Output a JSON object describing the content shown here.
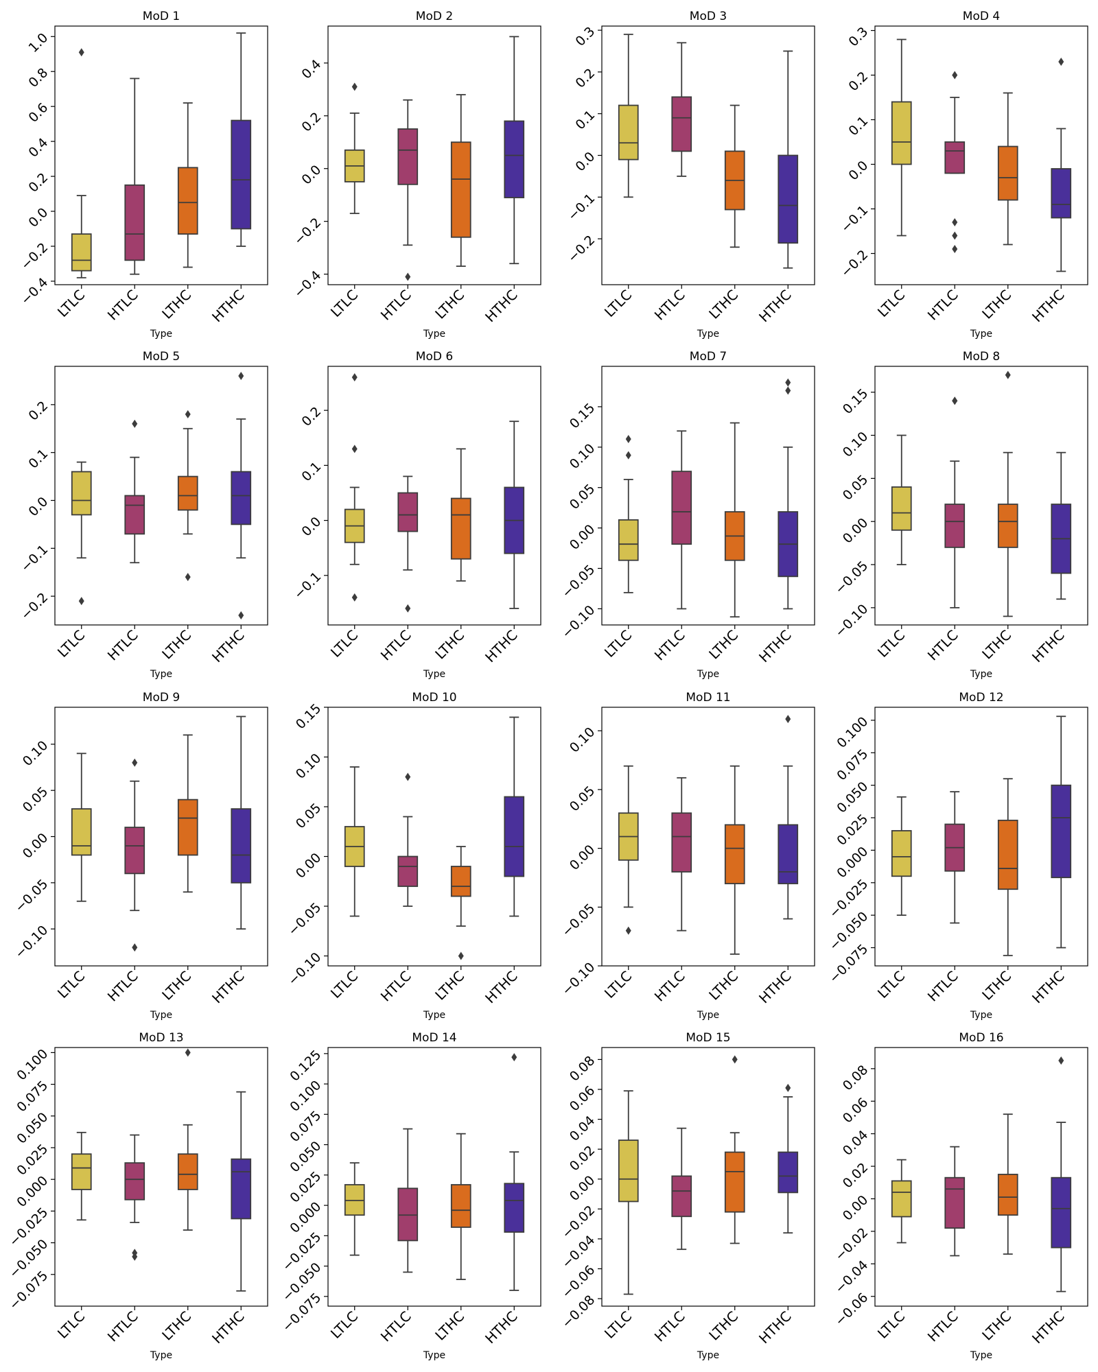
{
  "chart_data": [
    {
      "type": "box",
      "title": "MoD 1",
      "xlabel": "Type",
      "ylim": [
        -0.42,
        1.06
      ],
      "yticks": [
        "1.0",
        "0.8",
        "0.6",
        "0.4",
        "0.2",
        "0.0",
        "−0.2",
        "−0.4"
      ],
      "ytickvals": [
        1.0,
        0.8,
        0.6,
        0.4,
        0.2,
        0.0,
        -0.2,
        -0.4
      ],
      "categories": [
        "LTLC",
        "HTLC",
        "LTHC",
        "HTHC"
      ],
      "boxes": [
        {
          "min": -0.38,
          "q1": -0.34,
          "median": -0.28,
          "q3": -0.13,
          "max": 0.09,
          "outliers": [
            0.91
          ]
        },
        {
          "min": -0.36,
          "q1": -0.28,
          "median": -0.13,
          "q3": 0.15,
          "max": 0.76,
          "outliers": []
        },
        {
          "min": -0.32,
          "q1": -0.13,
          "median": 0.05,
          "q3": 0.25,
          "max": 0.62,
          "outliers": []
        },
        {
          "min": -0.2,
          "q1": -0.1,
          "median": 0.18,
          "q3": 0.52,
          "max": 1.02,
          "outliers": []
        }
      ]
    },
    {
      "type": "box",
      "title": "MoD 2",
      "xlabel": "Type",
      "ylim": [
        -0.44,
        0.54
      ],
      "yticks": [
        "0.4",
        "0.2",
        "0.0",
        "−0.2",
        "−0.4"
      ],
      "ytickvals": [
        0.4,
        0.2,
        0.0,
        -0.2,
        -0.4
      ],
      "categories": [
        "LTLC",
        "HTLC",
        "LTHC",
        "HTHC"
      ],
      "boxes": [
        {
          "min": -0.17,
          "q1": -0.05,
          "median": 0.01,
          "q3": 0.07,
          "max": 0.21,
          "outliers": [
            0.31
          ]
        },
        {
          "min": -0.29,
          "q1": -0.06,
          "median": 0.07,
          "q3": 0.15,
          "max": 0.26,
          "outliers": [
            -0.41
          ]
        },
        {
          "min": -0.37,
          "q1": -0.26,
          "median": -0.04,
          "q3": 0.1,
          "max": 0.28,
          "outliers": []
        },
        {
          "min": -0.36,
          "q1": -0.11,
          "median": 0.05,
          "q3": 0.18,
          "max": 0.5,
          "outliers": []
        }
      ]
    },
    {
      "type": "box",
      "title": "MoD 3",
      "xlabel": "Type",
      "ylim": [
        -0.31,
        0.31
      ],
      "yticks": [
        "0.3",
        "0.2",
        "0.1",
        "0.0",
        "−0.1",
        "−0.2"
      ],
      "ytickvals": [
        0.3,
        0.2,
        0.1,
        0.0,
        -0.1,
        -0.2
      ],
      "categories": [
        "LTLC",
        "HTLC",
        "LTHC",
        "HTHC"
      ],
      "boxes": [
        {
          "min": -0.1,
          "q1": -0.01,
          "median": 0.03,
          "q3": 0.12,
          "max": 0.29,
          "outliers": []
        },
        {
          "min": -0.05,
          "q1": 0.01,
          "median": 0.09,
          "q3": 0.14,
          "max": 0.27,
          "outliers": []
        },
        {
          "min": -0.22,
          "q1": -0.13,
          "median": -0.06,
          "q3": 0.01,
          "max": 0.12,
          "outliers": []
        },
        {
          "min": -0.27,
          "q1": -0.21,
          "median": -0.12,
          "q3": 0.0,
          "max": 0.25,
          "outliers": []
        }
      ]
    },
    {
      "type": "box",
      "title": "MoD 4",
      "xlabel": "Type",
      "ylim": [
        -0.27,
        0.31
      ],
      "yticks": [
        "0.3",
        "0.2",
        "0.1",
        "0.0",
        "−0.1",
        "−0.2"
      ],
      "ytickvals": [
        0.3,
        0.2,
        0.1,
        0.0,
        -0.1,
        -0.2
      ],
      "categories": [
        "LTLC",
        "HTLC",
        "LTHC",
        "HTHC"
      ],
      "boxes": [
        {
          "min": -0.16,
          "q1": 0.0,
          "median": 0.05,
          "q3": 0.14,
          "max": 0.28,
          "outliers": []
        },
        {
          "min": -0.02,
          "q1": -0.02,
          "median": 0.03,
          "q3": 0.05,
          "max": 0.15,
          "outliers": [
            0.2,
            -0.13,
            -0.16,
            -0.19
          ]
        },
        {
          "min": -0.18,
          "q1": -0.08,
          "median": -0.03,
          "q3": 0.04,
          "max": 0.16,
          "outliers": []
        },
        {
          "min": -0.24,
          "q1": -0.12,
          "median": -0.09,
          "q3": -0.01,
          "max": 0.08,
          "outliers": [
            0.23
          ]
        }
      ]
    },
    {
      "type": "box",
      "title": "MoD 5",
      "xlabel": "Type",
      "ylim": [
        -0.26,
        0.28
      ],
      "yticks": [
        "0.2",
        "0.1",
        "0.0",
        "−0.1",
        "−0.2"
      ],
      "ytickvals": [
        0.2,
        0.1,
        0.0,
        -0.1,
        -0.2
      ],
      "categories": [
        "LTLC",
        "HTLC",
        "LTHC",
        "HTHC"
      ],
      "boxes": [
        {
          "min": -0.12,
          "q1": -0.03,
          "median": 0.0,
          "q3": 0.06,
          "max": 0.08,
          "outliers": [
            -0.21
          ]
        },
        {
          "min": -0.13,
          "q1": -0.07,
          "median": -0.01,
          "q3": 0.01,
          "max": 0.09,
          "outliers": [
            0.16
          ]
        },
        {
          "min": -0.07,
          "q1": -0.02,
          "median": 0.01,
          "q3": 0.05,
          "max": 0.15,
          "outliers": [
            0.18,
            -0.16
          ]
        },
        {
          "min": -0.12,
          "q1": -0.05,
          "median": 0.01,
          "q3": 0.06,
          "max": 0.17,
          "outliers": [
            0.26,
            -0.24
          ]
        }
      ]
    },
    {
      "type": "box",
      "title": "MoD 6",
      "xlabel": "Type",
      "ylim": [
        -0.19,
        0.28
      ],
      "yticks": [
        "0.2",
        "0.1",
        "0.0",
        "−0.1"
      ],
      "ytickvals": [
        0.2,
        0.1,
        0.0,
        -0.1
      ],
      "categories": [
        "LTLC",
        "HTLC",
        "LTHC",
        "HTHC"
      ],
      "boxes": [
        {
          "min": -0.08,
          "q1": -0.04,
          "median": -0.01,
          "q3": 0.02,
          "max": 0.06,
          "outliers": [
            0.26,
            0.13,
            -0.14
          ]
        },
        {
          "min": -0.09,
          "q1": -0.02,
          "median": 0.01,
          "q3": 0.05,
          "max": 0.08,
          "outliers": [
            -0.16
          ]
        },
        {
          "min": -0.11,
          "q1": -0.07,
          "median": 0.01,
          "q3": 0.04,
          "max": 0.13,
          "outliers": []
        },
        {
          "min": -0.16,
          "q1": -0.06,
          "median": 0.0,
          "q3": 0.06,
          "max": 0.18,
          "outliers": []
        }
      ]
    },
    {
      "type": "box",
      "title": "MoD 7",
      "xlabel": "Type",
      "ylim": [
        -0.12,
        0.2
      ],
      "yticks": [
        "0.15",
        "0.10",
        "0.05",
        "0.00",
        "−0.05",
        "−0.10"
      ],
      "ytickvals": [
        0.15,
        0.1,
        0.05,
        0.0,
        -0.05,
        -0.1
      ],
      "categories": [
        "LTLC",
        "HTLC",
        "LTHC",
        "HTHC"
      ],
      "boxes": [
        {
          "min": -0.08,
          "q1": -0.04,
          "median": -0.02,
          "q3": 0.01,
          "max": 0.06,
          "outliers": [
            0.11,
            0.09
          ]
        },
        {
          "min": -0.1,
          "q1": -0.02,
          "median": 0.02,
          "q3": 0.07,
          "max": 0.12,
          "outliers": []
        },
        {
          "min": -0.11,
          "q1": -0.04,
          "median": -0.01,
          "q3": 0.02,
          "max": 0.13,
          "outliers": []
        },
        {
          "min": -0.1,
          "q1": -0.06,
          "median": -0.02,
          "q3": 0.02,
          "max": 0.1,
          "outliers": [
            0.18,
            0.17
          ]
        }
      ]
    },
    {
      "type": "box",
      "title": "MoD 8",
      "xlabel": "Type",
      "ylim": [
        -0.12,
        0.18
      ],
      "yticks": [
        "0.15",
        "0.10",
        "0.05",
        "0.00",
        "−0.05",
        "−0.10"
      ],
      "ytickvals": [
        0.15,
        0.1,
        0.05,
        0.0,
        -0.05,
        -0.1
      ],
      "categories": [
        "LTLC",
        "HTLC",
        "LTHC",
        "HTHC"
      ],
      "boxes": [
        {
          "min": -0.05,
          "q1": -0.01,
          "median": 0.01,
          "q3": 0.04,
          "max": 0.1,
          "outliers": []
        },
        {
          "min": -0.1,
          "q1": -0.03,
          "median": 0.0,
          "q3": 0.02,
          "max": 0.07,
          "outliers": [
            0.14,
            0.14
          ]
        },
        {
          "min": -0.11,
          "q1": -0.03,
          "median": 0.0,
          "q3": 0.02,
          "max": 0.08,
          "outliers": [
            0.17
          ]
        },
        {
          "min": -0.09,
          "q1": -0.06,
          "median": -0.02,
          "q3": 0.02,
          "max": 0.08,
          "outliers": []
        }
      ]
    },
    {
      "type": "box",
      "title": "MoD 9",
      "xlabel": "Type",
      "ylim": [
        -0.14,
        0.14
      ],
      "yticks": [
        "0.10",
        "0.05",
        "0.00",
        "−0.05",
        "−0.10"
      ],
      "ytickvals": [
        0.1,
        0.05,
        0.0,
        -0.05,
        -0.1
      ],
      "categories": [
        "LTLC",
        "HTLC",
        "LTHC",
        "HTHC"
      ],
      "boxes": [
        {
          "min": -0.07,
          "q1": -0.02,
          "median": -0.01,
          "q3": 0.03,
          "max": 0.09,
          "outliers": []
        },
        {
          "min": -0.08,
          "q1": -0.04,
          "median": -0.01,
          "q3": 0.01,
          "max": 0.06,
          "outliers": [
            0.08,
            -0.12
          ]
        },
        {
          "min": -0.06,
          "q1": -0.02,
          "median": 0.02,
          "q3": 0.04,
          "max": 0.11,
          "outliers": []
        },
        {
          "min": -0.1,
          "q1": -0.05,
          "median": -0.02,
          "q3": 0.03,
          "max": 0.13,
          "outliers": []
        }
      ]
    },
    {
      "type": "box",
      "title": "MoD 10",
      "xlabel": "Type",
      "ylim": [
        -0.11,
        0.15
      ],
      "yticks": [
        "0.15",
        "0.10",
        "0.05",
        "0.00",
        "−0.05",
        "−0.10"
      ],
      "ytickvals": [
        0.15,
        0.1,
        0.05,
        0.0,
        -0.05,
        -0.1
      ],
      "categories": [
        "LTLC",
        "HTLC",
        "LTHC",
        "HTHC"
      ],
      "boxes": [
        {
          "min": -0.06,
          "q1": -0.01,
          "median": 0.01,
          "q3": 0.03,
          "max": 0.09,
          "outliers": []
        },
        {
          "min": -0.05,
          "q1": -0.03,
          "median": -0.01,
          "q3": 0.0,
          "max": 0.04,
          "outliers": [
            0.08
          ]
        },
        {
          "min": -0.07,
          "q1": -0.04,
          "median": -0.03,
          "q3": -0.01,
          "max": 0.01,
          "outliers": [
            -0.1
          ]
        },
        {
          "min": -0.06,
          "q1": -0.02,
          "median": 0.01,
          "q3": 0.06,
          "max": 0.14,
          "outliers": []
        }
      ]
    },
    {
      "type": "box",
      "title": "MoD 11",
      "xlabel": "Type",
      "ylim": [
        -0.1,
        0.12
      ],
      "yticks": [
        "0.10",
        "0.05",
        "0.00",
        "−0.05",
        "−0.10"
      ],
      "ytickvals": [
        0.1,
        0.05,
        0.0,
        -0.05,
        -0.1
      ],
      "categories": [
        "LTLC",
        "HTLC",
        "LTHC",
        "HTHC"
      ],
      "boxes": [
        {
          "min": -0.05,
          "q1": -0.01,
          "median": 0.01,
          "q3": 0.03,
          "max": 0.07,
          "outliers": [
            -0.07
          ]
        },
        {
          "min": -0.07,
          "q1": -0.02,
          "median": 0.01,
          "q3": 0.03,
          "max": 0.06,
          "outliers": []
        },
        {
          "min": -0.09,
          "q1": -0.03,
          "median": 0.0,
          "q3": 0.02,
          "max": 0.07,
          "outliers": []
        },
        {
          "min": -0.06,
          "q1": -0.03,
          "median": -0.02,
          "q3": 0.02,
          "max": 0.07,
          "outliers": [
            0.11
          ]
        }
      ]
    },
    {
      "type": "box",
      "title": "MoD 12",
      "xlabel": "Type",
      "ylim": [
        -0.089,
        0.11
      ],
      "yticks": [
        "0.100",
        "0.075",
        "0.050",
        "0.025",
        "0.000",
        "−0.025",
        "−0.050",
        "−0.075"
      ],
      "ytickvals": [
        0.1,
        0.075,
        0.05,
        0.025,
        0.0,
        -0.025,
        -0.05,
        -0.075
      ],
      "categories": [
        "LTLC",
        "HTLC",
        "LTHC",
        "HTHC"
      ],
      "boxes": [
        {
          "min": -0.05,
          "q1": -0.02,
          "median": -0.005,
          "q3": 0.015,
          "max": 0.041,
          "outliers": []
        },
        {
          "min": -0.056,
          "q1": -0.016,
          "median": 0.002,
          "q3": 0.02,
          "max": 0.045,
          "outliers": []
        },
        {
          "min": -0.081,
          "q1": -0.03,
          "median": -0.014,
          "q3": 0.023,
          "max": 0.055,
          "outliers": []
        },
        {
          "min": -0.075,
          "q1": -0.021,
          "median": 0.025,
          "q3": 0.05,
          "max": 0.103,
          "outliers": []
        }
      ]
    },
    {
      "type": "box",
      "title": "MoD 13",
      "xlabel": "Type",
      "ylim": [
        -0.1,
        0.104
      ],
      "yticks": [
        "0.100",
        "0.075",
        "0.050",
        "0.025",
        "0.000",
        "−0.025",
        "−0.050",
        "−0.075"
      ],
      "ytickvals": [
        0.1,
        0.075,
        0.05,
        0.025,
        0.0,
        -0.025,
        -0.05,
        -0.075
      ],
      "categories": [
        "LTLC",
        "HTLC",
        "LTHC",
        "HTHC"
      ],
      "boxes": [
        {
          "min": -0.032,
          "q1": -0.008,
          "median": 0.009,
          "q3": 0.02,
          "max": 0.037,
          "outliers": []
        },
        {
          "min": -0.034,
          "q1": -0.016,
          "median": 0.0,
          "q3": 0.013,
          "max": 0.035,
          "outliers": [
            -0.058,
            -0.061
          ]
        },
        {
          "min": -0.04,
          "q1": -0.008,
          "median": 0.004,
          "q3": 0.02,
          "max": 0.043,
          "outliers": [
            0.1
          ]
        },
        {
          "min": -0.088,
          "q1": -0.031,
          "median": 0.006,
          "q3": 0.016,
          "max": 0.069,
          "outliers": []
        }
      ]
    },
    {
      "type": "box",
      "title": "MoD 14",
      "xlabel": "Type",
      "ylim": [
        -0.083,
        0.13
      ],
      "yticks": [
        "0.125",
        "0.100",
        "0.075",
        "0.050",
        "0.025",
        "0.000",
        "−0.025",
        "−0.050",
        "−0.075"
      ],
      "ytickvals": [
        0.125,
        0.1,
        0.075,
        0.05,
        0.025,
        0.0,
        -0.025,
        -0.05,
        -0.075
      ],
      "categories": [
        "LTLC",
        "HTLC",
        "LTHC",
        "HTHC"
      ],
      "boxes": [
        {
          "min": -0.041,
          "q1": -0.008,
          "median": 0.004,
          "q3": 0.017,
          "max": 0.035,
          "outliers": []
        },
        {
          "min": -0.055,
          "q1": -0.029,
          "median": -0.008,
          "q3": 0.014,
          "max": 0.063,
          "outliers": []
        },
        {
          "min": -0.061,
          "q1": -0.018,
          "median": -0.004,
          "q3": 0.017,
          "max": 0.059,
          "outliers": []
        },
        {
          "min": -0.07,
          "q1": -0.022,
          "median": 0.004,
          "q3": 0.018,
          "max": 0.044,
          "outliers": [
            0.122
          ]
        }
      ]
    },
    {
      "type": "box",
      "title": "MoD 15",
      "xlabel": "Type",
      "ylim": [
        -0.085,
        0.088
      ],
      "yticks": [
        "0.08",
        "0.06",
        "0.04",
        "0.02",
        "0.00",
        "−0.02",
        "−0.04",
        "−0.06",
        "−0.08"
      ],
      "ytickvals": [
        0.08,
        0.06,
        0.04,
        0.02,
        0.0,
        -0.02,
        -0.04,
        -0.06,
        -0.08
      ],
      "categories": [
        "LTLC",
        "HTLC",
        "LTHC",
        "HTHC"
      ],
      "boxes": [
        {
          "min": -0.077,
          "q1": -0.015,
          "median": 0.0,
          "q3": 0.026,
          "max": 0.059,
          "outliers": []
        },
        {
          "min": -0.047,
          "q1": -0.025,
          "median": -0.008,
          "q3": 0.002,
          "max": 0.034,
          "outliers": []
        },
        {
          "min": -0.043,
          "q1": -0.022,
          "median": 0.005,
          "q3": 0.018,
          "max": 0.031,
          "outliers": [
            0.08
          ]
        },
        {
          "min": -0.036,
          "q1": -0.009,
          "median": 0.002,
          "q3": 0.018,
          "max": 0.055,
          "outliers": [
            0.061
          ]
        }
      ]
    },
    {
      "type": "box",
      "title": "MoD 16",
      "xlabel": "Type",
      "ylim": [
        -0.066,
        0.093
      ],
      "yticks": [
        "0.08",
        "0.06",
        "0.04",
        "0.02",
        "0.00",
        "−0.02",
        "−0.04",
        "−0.06"
      ],
      "ytickvals": [
        0.08,
        0.06,
        0.04,
        0.02,
        0.0,
        -0.02,
        -0.04,
        -0.06
      ],
      "categories": [
        "LTLC",
        "HTLC",
        "LTHC",
        "HTHC"
      ],
      "boxes": [
        {
          "min": -0.027,
          "q1": -0.011,
          "median": 0.004,
          "q3": 0.011,
          "max": 0.024,
          "outliers": []
        },
        {
          "min": -0.035,
          "q1": -0.018,
          "median": 0.006,
          "q3": 0.013,
          "max": 0.032,
          "outliers": []
        },
        {
          "min": -0.034,
          "q1": -0.01,
          "median": 0.001,
          "q3": 0.015,
          "max": 0.052,
          "outliers": []
        },
        {
          "min": -0.057,
          "q1": -0.03,
          "median": -0.006,
          "q3": 0.013,
          "max": 0.047,
          "outliers": [
            0.085
          ]
        }
      ]
    }
  ],
  "colors": {
    "LTLC": "#d4c04f",
    "HTLC": "#a03e6c",
    "LTHC": "#d96c1e",
    "HTHC": "#4a309a"
  }
}
